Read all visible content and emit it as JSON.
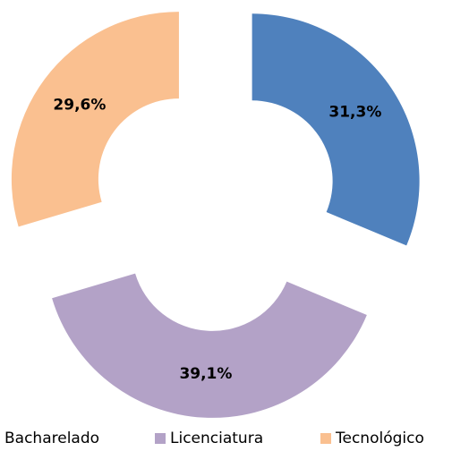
{
  "chart_data": {
    "type": "pie",
    "donut": true,
    "categories": [
      "Bacharelado",
      "Licenciatura",
      "Tecnológico"
    ],
    "values": [
      31.3,
      39.1,
      29.6
    ],
    "value_labels": [
      "31,3%",
      "39,1%",
      "29,6%"
    ],
    "colors": [
      "#4f81bd",
      "#b3a2c7",
      "#fac090"
    ],
    "legend": "bottom"
  }
}
